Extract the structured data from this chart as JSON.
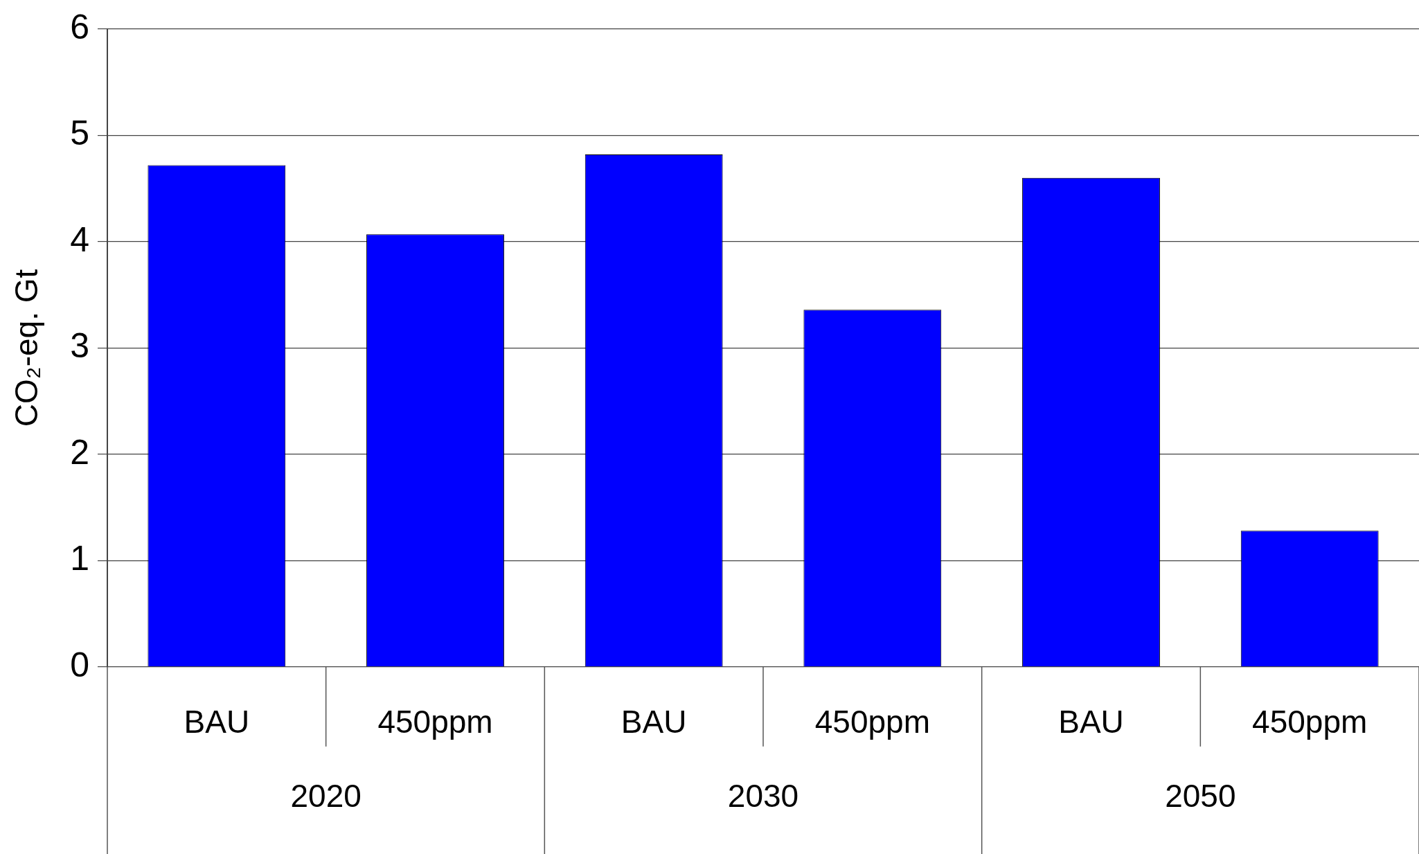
{
  "chart_data": {
    "type": "bar",
    "ylabel": "CO₂-eq. Gt",
    "categories": [
      "BAU",
      "450ppm",
      "BAU",
      "450ppm",
      "BAU",
      "450ppm"
    ],
    "values": [
      4.72,
      4.07,
      4.82,
      3.36,
      4.6,
      1.28
    ],
    "color": "#0000ff",
    "annotations": [
      "2020",
      "2030",
      "2050"
    ],
    "ylim": [
      0,
      6
    ],
    "yticks": [
      0,
      1,
      2,
      3,
      4,
      5,
      6
    ],
    "grid": "y",
    "legend": false
  }
}
